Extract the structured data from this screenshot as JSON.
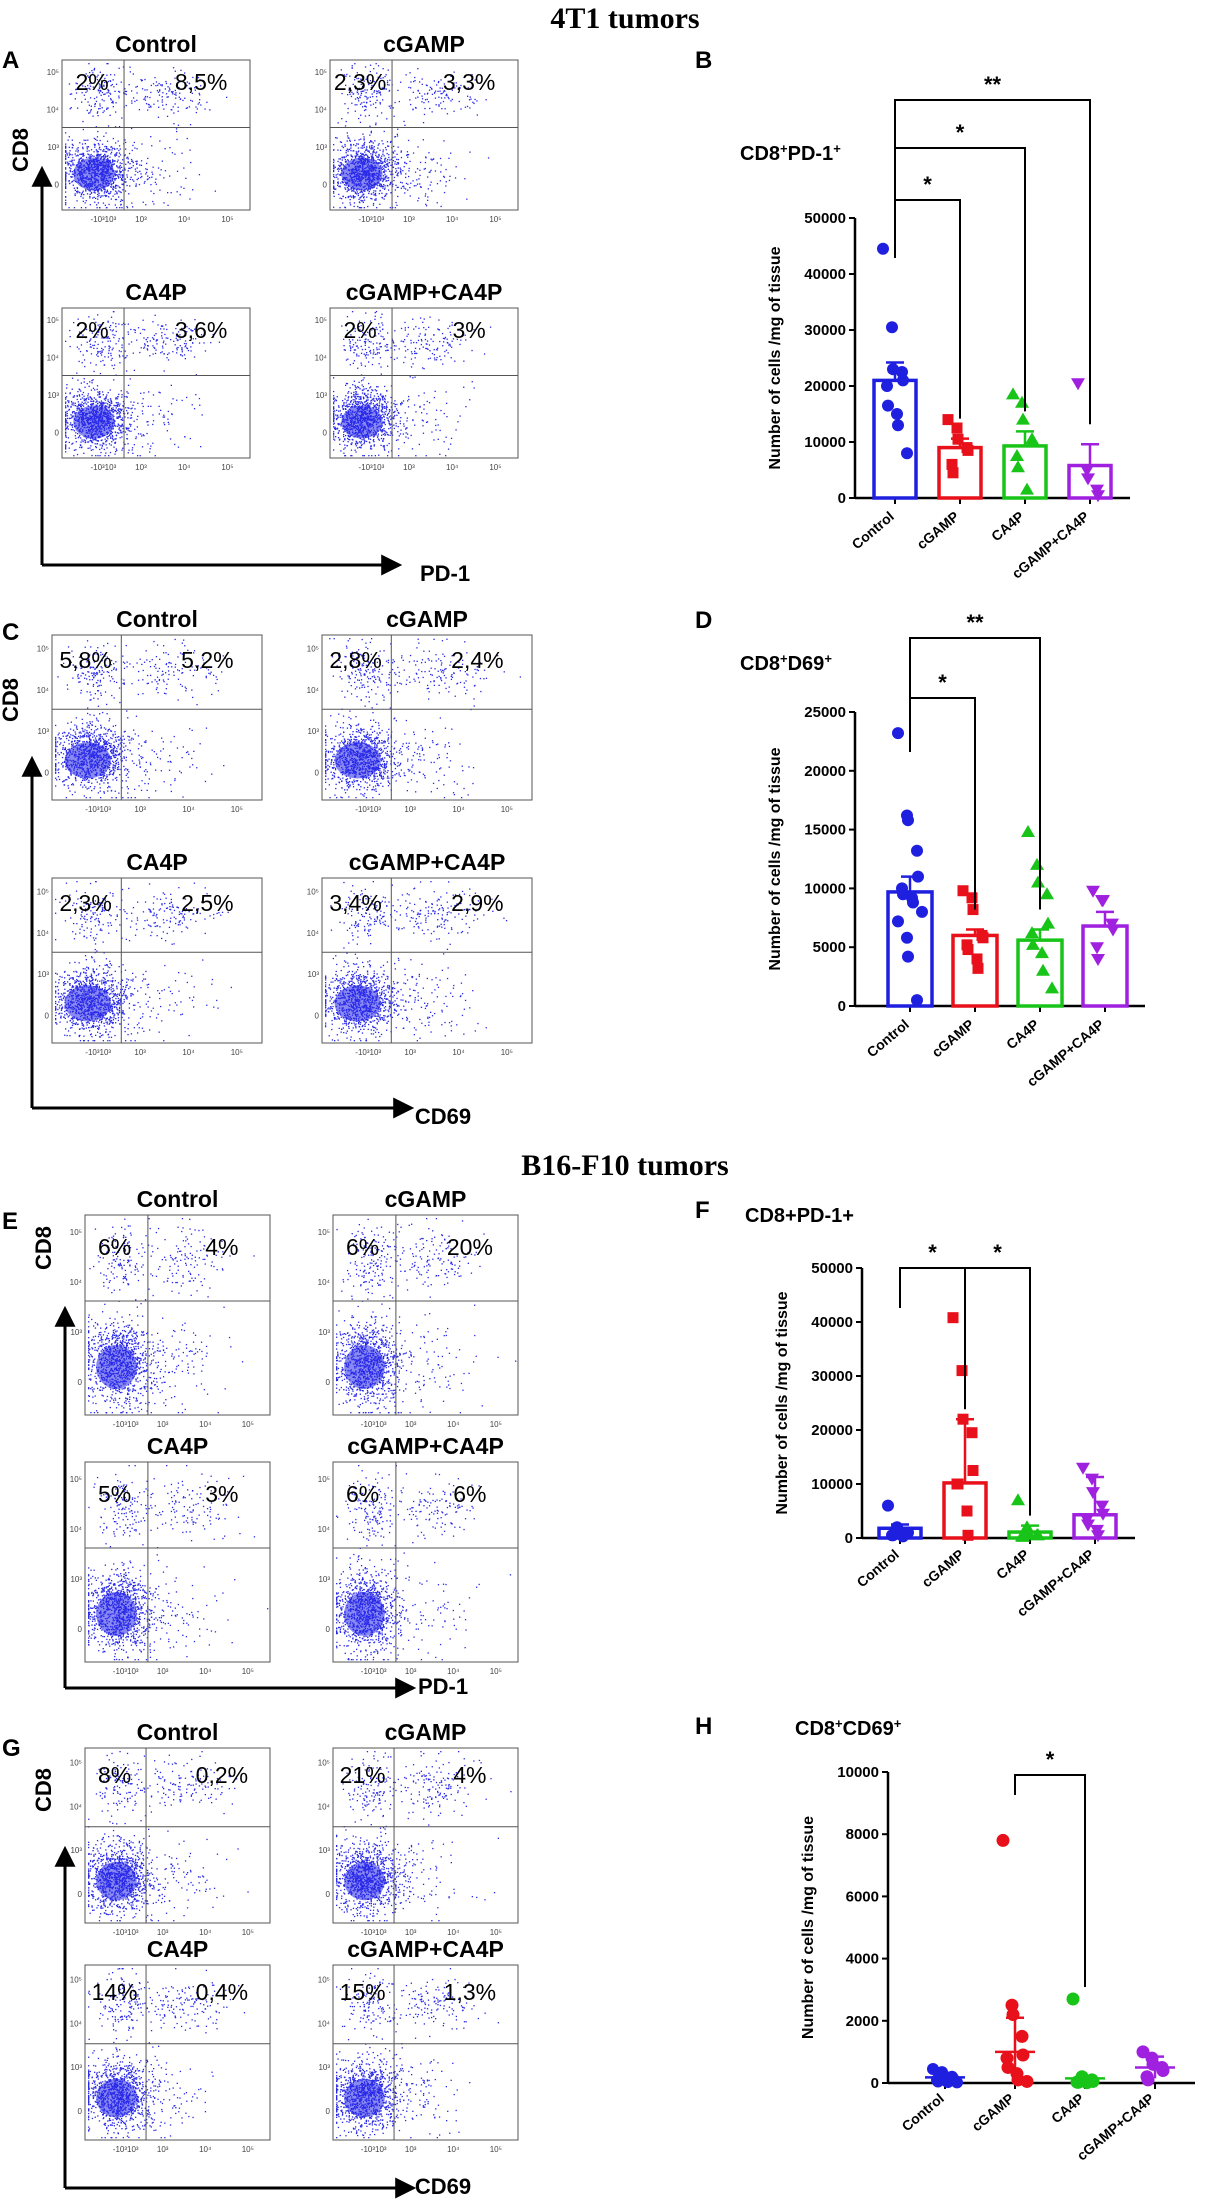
{
  "section_titles": [
    "4T1 tumors",
    "B16-F10 tumors"
  ],
  "colors": {
    "Control": "#1f1fe0",
    "cGAMP": "#e8101a",
    "CA4P": "#19c419",
    "cGAMP+CA4P": "#a020e0",
    "dots": "#2828e8"
  },
  "flow_panels": [
    {
      "letter": "A",
      "marker": "PD-1",
      "y_marker": "CD8",
      "tick_style": "4T1",
      "plots": [
        {
          "title": "Control",
          "left_pct": "2%",
          "right_pct": "8,5%"
        },
        {
          "title": "cGAMP",
          "left_pct": "2,3%",
          "right_pct": "3,3%"
        },
        {
          "title": "CA4P",
          "left_pct": "2%",
          "right_pct": "3,6%"
        },
        {
          "title": "cGAMP+CA4P",
          "left_pct": "2%",
          "right_pct": "3%"
        }
      ]
    },
    {
      "letter": "C",
      "marker": "CD69",
      "y_marker": "CD8",
      "tick_style": "4T1",
      "plots": [
        {
          "title": "Control",
          "left_pct": "5,8%",
          "right_pct": "5,2%"
        },
        {
          "title": "cGAMP",
          "left_pct": "2,8%",
          "right_pct": "2,4%"
        },
        {
          "title": "CA4P",
          "left_pct": "2,3%",
          "right_pct": "2,5%"
        },
        {
          "title": "cGAMP+CA4P",
          "left_pct": "3,4%",
          "right_pct": "2,9%"
        }
      ]
    },
    {
      "letter": "E",
      "marker": "PD-1",
      "y_marker": "CD8",
      "tick_style": "B16",
      "plots": [
        {
          "title": "Control",
          "left_pct": "6%",
          "right_pct": "4%"
        },
        {
          "title": "cGAMP",
          "left_pct": "6%",
          "right_pct": "20%"
        },
        {
          "title": "CA4P",
          "left_pct": "5%",
          "right_pct": "3%"
        },
        {
          "title": "cGAMP+CA4P",
          "left_pct": "6%",
          "right_pct": "6%"
        }
      ]
    },
    {
      "letter": "G",
      "marker": "CD69",
      "y_marker": "CD8",
      "tick_style": "B16",
      "plots": [
        {
          "title": "Control",
          "left_pct": "8%",
          "right_pct": "0,2%"
        },
        {
          "title": "cGAMP",
          "left_pct": "21%",
          "right_pct": "4%"
        },
        {
          "title": "CA4P",
          "left_pct": "14%",
          "right_pct": "0,4%"
        },
        {
          "title": "cGAMP+CA4P",
          "left_pct": "15%",
          "right_pct": "1,3%"
        }
      ]
    }
  ],
  "chart_data": [
    {
      "letter": "B",
      "type": "bar",
      "title": "CD8+PD-1+",
      "title_sup": true,
      "ylabel": "Number of cells /mg of tissue",
      "categories": [
        "Control",
        "cGAMP",
        "CA4P",
        "cGAMP+CA4P"
      ],
      "ylim": [
        0,
        50000
      ],
      "yticks": [
        0,
        10000,
        20000,
        30000,
        40000,
        50000
      ],
      "means": [
        21000,
        9000,
        9300,
        5800
      ],
      "errors": [
        3200,
        1600,
        2600,
        3800
      ],
      "points": [
        [
          44500,
          30500,
          23000,
          22500,
          21000,
          20000,
          16500,
          15000,
          13000,
          8000
        ],
        [
          14000,
          12500,
          10500,
          9000,
          8500,
          6000,
          4500
        ],
        [
          18500,
          17000,
          14000,
          10500,
          10000,
          7500,
          5500,
          1500
        ],
        [
          20500,
          5000,
          3500,
          1500,
          500
        ]
      ],
      "significance": [
        {
          "from": 0,
          "to": 1,
          "label": "*"
        },
        {
          "from": 0,
          "to": 2,
          "label": "*"
        },
        {
          "from": 0,
          "to": 3,
          "label": "**"
        }
      ]
    },
    {
      "letter": "D",
      "type": "bar",
      "title": "CD8+D69+",
      "title_sup": true,
      "ylabel": "Number of cells /mg of tissue",
      "categories": [
        "Control",
        "cGAMP",
        "CA4P",
        "cGAMP+CA4P"
      ],
      "ylim": [
        0,
        25000
      ],
      "yticks": [
        0,
        5000,
        10000,
        15000,
        20000,
        25000
      ],
      "means": [
        9700,
        6000,
        5600,
        6800
      ],
      "errors": [
        1300,
        500,
        900,
        1200
      ],
      "points": [
        [
          23200,
          16200,
          15800,
          13200,
          11000,
          10000,
          9500,
          9200,
          8800,
          8000,
          7200,
          5800,
          4200,
          500
        ],
        [
          9800,
          9200,
          8200,
          6000,
          5800,
          5200,
          4800,
          4000,
          3200
        ],
        [
          14800,
          12000,
          10500,
          9500,
          7000,
          6200,
          5200,
          4500,
          3000,
          1500
        ],
        [
          9800,
          9000,
          9000,
          7000,
          6500,
          5000,
          4000
        ]
      ],
      "significance": [
        {
          "from": 0,
          "to": 1,
          "label": "*"
        },
        {
          "from": 0,
          "to": 2,
          "label": "**"
        }
      ]
    },
    {
      "letter": "F",
      "type": "bar",
      "title": "CD8+PD-1+",
      "title_sup": false,
      "ylabel": "Number of cells /mg of tissue",
      "categories": [
        "Control",
        "cGAMP",
        "CA4P",
        "cGAMP+CA4P"
      ],
      "ylim": [
        0,
        50000
      ],
      "yticks": [
        0,
        10000,
        20000,
        30000,
        40000,
        50000
      ],
      "means": [
        1800,
        10200,
        1100,
        4300
      ],
      "errors": [
        700,
        11800,
        1200,
        7000
      ],
      "points": [
        [
          6000,
          2000,
          1500,
          1000,
          1000,
          500,
          500,
          800,
          300
        ],
        [
          40800,
          31000,
          22000,
          19500,
          12500,
          10000,
          10000,
          5000,
          500
        ],
        [
          7000,
          2000,
          1000,
          500,
          500,
          300,
          200
        ],
        [
          13000,
          11000,
          8500,
          6000,
          4500,
          3500,
          2500,
          1500,
          500
        ]
      ],
      "significance": [
        {
          "from": 0,
          "to": 1,
          "label": "*"
        },
        {
          "from": 1,
          "to": 2,
          "label": "*"
        }
      ]
    },
    {
      "letter": "H",
      "type": "scatter",
      "title": "CD8+CD69+",
      "title_sup": true,
      "ylabel": "Number of cells /mg of tissue",
      "categories": [
        "Control",
        "cGAMP",
        "CA4P",
        "cGAMP+CA4P"
      ],
      "ylim": [
        0,
        10000
      ],
      "yticks": [
        0,
        2000,
        4000,
        6000,
        8000,
        10000
      ],
      "means": [
        180,
        1000,
        150,
        500
      ],
      "errors": [
        150,
        1100,
        0,
        350
      ],
      "points": [
        [
          450,
          350,
          250,
          200,
          150,
          100,
          50,
          50,
          30,
          20
        ],
        [
          7800,
          2500,
          2200,
          1500,
          900,
          800,
          500,
          300,
          100,
          50
        ],
        [
          2700,
          200,
          150,
          100,
          50,
          30,
          20,
          10
        ],
        [
          1000,
          800,
          600,
          500,
          400,
          200,
          100
        ]
      ],
      "significance": [
        {
          "from": 1,
          "to": 2,
          "label": "*"
        }
      ]
    }
  ]
}
